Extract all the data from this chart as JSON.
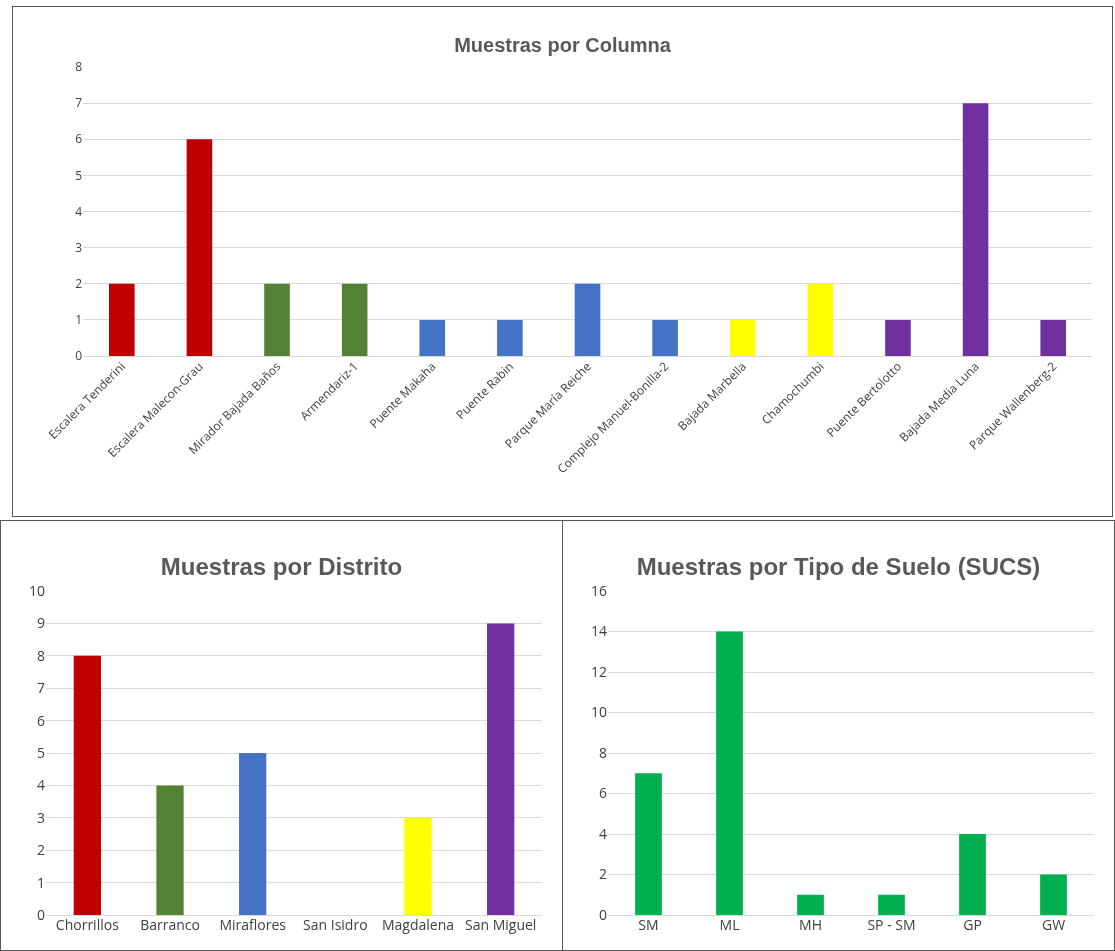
{
  "chart_data": [
    {
      "type": "bar",
      "title": "Muestras por Columna",
      "categories": [
        "Escalera Tenderini",
        "Escalera Malecon-Grau",
        "Mirador Bajada Baños",
        "Armendariz-1",
        "Puente Makaha",
        "Puente Rabin",
        "Parque María Reiche",
        "Complejo Manuel-Bonilla-2",
        "Bajada Marbella",
        "Chamochumbi",
        "Puente Bertolotto",
        "Bajada Media Luna",
        "Parque Wallenberg-2"
      ],
      "values": [
        2,
        6,
        2,
        2,
        1,
        1,
        2,
        1,
        1,
        2,
        1,
        7,
        1
      ],
      "colors": [
        "#c00000",
        "#c00000",
        "#548235",
        "#548235",
        "#4472c4",
        "#4472c4",
        "#4472c4",
        "#4472c4",
        "#ffff00",
        "#ffff00",
        "#7030a0",
        "#7030a0",
        "#7030a0"
      ],
      "ylim": [
        0,
        8
      ],
      "yticks": [
        0,
        1,
        2,
        3,
        4,
        5,
        6,
        7,
        8
      ],
      "grid": "y"
    },
    {
      "type": "bar",
      "title": "Muestras por Distrito",
      "categories": [
        "Chorrillos",
        "Barranco",
        "Miraflores",
        "San Isidro",
        "Magdalena",
        "San Miguel"
      ],
      "values": [
        8,
        4,
        5,
        0,
        3,
        9
      ],
      "colors": [
        "#c00000",
        "#548235",
        "#4472c4",
        "#ffc000",
        "#ffff00",
        "#7030a0"
      ],
      "ylim": [
        0,
        10
      ],
      "yticks": [
        0,
        1,
        2,
        3,
        4,
        5,
        6,
        7,
        8,
        9,
        10
      ],
      "grid": "y"
    },
    {
      "type": "bar",
      "title": "Muestras por Tipo de Suelo (SUCS)",
      "categories": [
        "SM",
        "ML",
        "MH",
        "SP - SM",
        "GP",
        "GW"
      ],
      "values": [
        7,
        14,
        1,
        1,
        4,
        2
      ],
      "colors": [
        "#00b050",
        "#00b050",
        "#00b050",
        "#00b050",
        "#00b050",
        "#00b050"
      ],
      "ylim": [
        0,
        16
      ],
      "yticks": [
        0,
        2,
        4,
        6,
        8,
        10,
        12,
        14,
        16
      ],
      "grid": "y"
    }
  ]
}
